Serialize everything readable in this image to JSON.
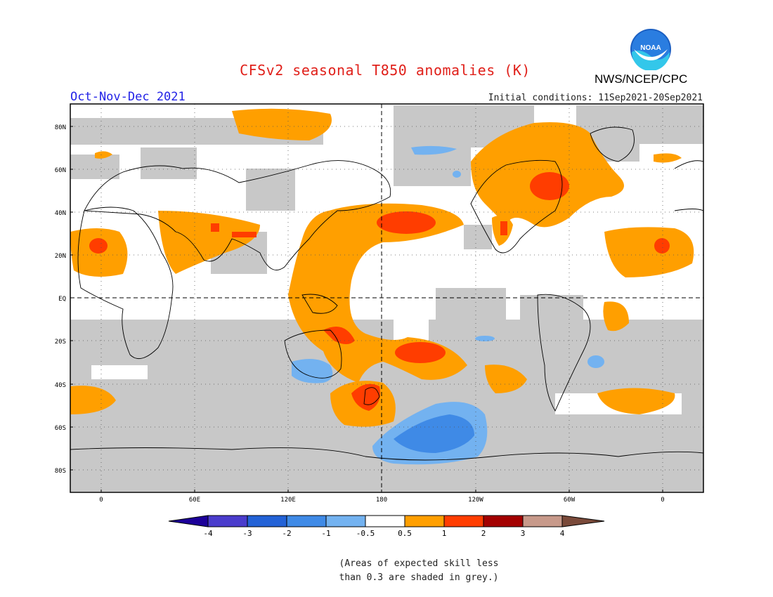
{
  "header": {
    "title": "CFSv2 seasonal T850 anomalies (K)",
    "season": "Oct-Nov-Dec 2021",
    "initial_conditions": "Initial conditions: 11Sep2021-20Sep2021",
    "agency": "NWS/NCEP/CPC",
    "logo_text": "NOAA"
  },
  "map": {
    "lat_labels": [
      "80N",
      "60N",
      "40N",
      "20N",
      "EQ",
      "20S",
      "40S",
      "60S",
      "80S"
    ],
    "lon_labels": [
      "0",
      "60E",
      "120E",
      "180",
      "120W",
      "60W",
      "0"
    ]
  },
  "legend": {
    "ticks": [
      "-4",
      "-3",
      "-2",
      "-1",
      "-0.5",
      "0.5",
      "1",
      "2",
      "3",
      "4"
    ],
    "colors": [
      "#1c0099",
      "#4a3ccc",
      "#2362d6",
      "#3f8ae6",
      "#73b2f0",
      "#ffffff",
      "#ff9f00",
      "#ff3d00",
      "#a30000",
      "#c7998a",
      "#7a4a3a"
    ]
  },
  "footnote": {
    "line1": "(Areas of expected skill less",
    "line2": "than 0.3 are shaded in grey.)"
  }
}
